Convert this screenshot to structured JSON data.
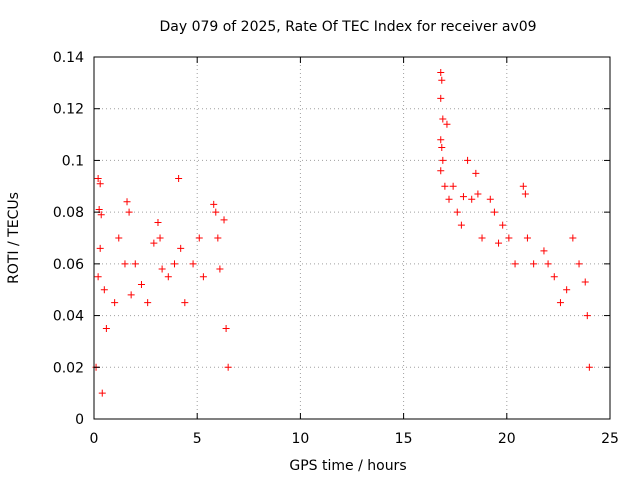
{
  "chart_data": {
    "type": "scatter",
    "title": "Day 079 of 2025, Rate Of TEC Index for receiver av09",
    "xlabel": "GPS time / hours",
    "ylabel": "ROTI / TECUs",
    "xlim": [
      0,
      25
    ],
    "ylim": [
      0,
      0.14
    ],
    "xticks": [
      "0",
      "5",
      "10",
      "15",
      "20",
      "25"
    ],
    "yticks": [
      "0",
      "0.02",
      "0.04",
      "0.06",
      "0.08",
      "0.1",
      "0.12",
      "0.14"
    ],
    "grid": true,
    "marker": "+",
    "color": "#ff0000",
    "series": [
      {
        "values": [
          [
            0.1,
            0.02
          ],
          [
            0.2,
            0.093
          ],
          [
            0.3,
            0.091
          ],
          [
            0.25,
            0.081
          ],
          [
            0.35,
            0.079
          ],
          [
            0.3,
            0.066
          ],
          [
            0.2,
            0.055
          ],
          [
            0.5,
            0.05
          ],
          [
            0.6,
            0.035
          ],
          [
            0.4,
            0.01
          ],
          [
            1.0,
            0.045
          ],
          [
            1.2,
            0.07
          ],
          [
            1.5,
            0.06
          ],
          [
            1.6,
            0.084
          ],
          [
            1.7,
            0.08
          ],
          [
            1.8,
            0.048
          ],
          [
            2.0,
            0.06
          ],
          [
            2.3,
            0.052
          ],
          [
            2.6,
            0.045
          ],
          [
            2.9,
            0.068
          ],
          [
            3.1,
            0.076
          ],
          [
            3.2,
            0.07
          ],
          [
            3.3,
            0.058
          ],
          [
            3.6,
            0.055
          ],
          [
            3.9,
            0.06
          ],
          [
            4.1,
            0.093
          ],
          [
            4.2,
            0.066
          ],
          [
            4.4,
            0.045
          ],
          [
            4.8,
            0.06
          ],
          [
            5.1,
            0.07
          ],
          [
            5.3,
            0.055
          ],
          [
            5.8,
            0.083
          ],
          [
            5.9,
            0.08
          ],
          [
            6.0,
            0.07
          ],
          [
            6.1,
            0.058
          ],
          [
            6.3,
            0.077
          ],
          [
            6.4,
            0.035
          ],
          [
            6.5,
            0.02
          ],
          [
            16.8,
            0.134
          ],
          [
            16.85,
            0.131
          ],
          [
            16.8,
            0.124
          ],
          [
            16.9,
            0.116
          ],
          [
            17.1,
            0.114
          ],
          [
            16.8,
            0.108
          ],
          [
            16.85,
            0.105
          ],
          [
            16.9,
            0.1
          ],
          [
            16.8,
            0.096
          ],
          [
            17.0,
            0.09
          ],
          [
            17.2,
            0.085
          ],
          [
            17.4,
            0.09
          ],
          [
            17.6,
            0.08
          ],
          [
            17.8,
            0.075
          ],
          [
            17.9,
            0.086
          ],
          [
            18.1,
            0.1
          ],
          [
            18.3,
            0.085
          ],
          [
            18.5,
            0.095
          ],
          [
            18.6,
            0.087
          ],
          [
            18.8,
            0.07
          ],
          [
            19.2,
            0.085
          ],
          [
            19.4,
            0.08
          ],
          [
            19.6,
            0.068
          ],
          [
            19.8,
            0.075
          ],
          [
            20.1,
            0.07
          ],
          [
            20.4,
            0.06
          ],
          [
            20.8,
            0.09
          ],
          [
            20.9,
            0.087
          ],
          [
            21.0,
            0.07
          ],
          [
            21.3,
            0.06
          ],
          [
            21.8,
            0.065
          ],
          [
            22.0,
            0.06
          ],
          [
            22.3,
            0.055
          ],
          [
            22.6,
            0.045
          ],
          [
            22.9,
            0.05
          ],
          [
            23.2,
            0.07
          ],
          [
            23.5,
            0.06
          ],
          [
            23.8,
            0.053
          ],
          [
            23.9,
            0.04
          ],
          [
            24.0,
            0.02
          ]
        ]
      }
    ]
  }
}
